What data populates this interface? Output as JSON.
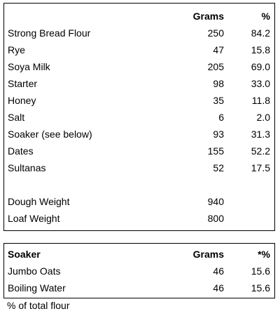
{
  "recipe": {
    "headers": {
      "name": "",
      "grams": "Grams",
      "pct": "%"
    },
    "ingredients": [
      {
        "name": "Strong Bread Flour",
        "grams": "250",
        "pct": "84.2"
      },
      {
        "name": "Rye",
        "grams": "47",
        "pct": "15.8"
      },
      {
        "name": "Soya Milk",
        "grams": "205",
        "pct": "69.0"
      },
      {
        "name": "Starter",
        "grams": "98",
        "pct": "33.0"
      },
      {
        "name": "Honey",
        "grams": "35",
        "pct": "11.8"
      },
      {
        "name": "Salt",
        "grams": "6",
        "pct": "2.0"
      },
      {
        "name": "Soaker (see below)",
        "grams": "93",
        "pct": "31.3"
      },
      {
        "name": "Dates",
        "grams": "155",
        "pct": "52.2"
      },
      {
        "name": "Sultanas",
        "grams": "52",
        "pct": "17.5"
      }
    ],
    "totals": [
      {
        "name": "Dough Weight",
        "grams": "940"
      },
      {
        "name": "Loaf Weight",
        "grams": "800"
      }
    ]
  },
  "soaker": {
    "headers": {
      "name": "Soaker",
      "grams": "Grams",
      "pct": "*%"
    },
    "ingredients": [
      {
        "name": "Jumbo Oats",
        "grams": "46",
        "pct": "15.6"
      },
      {
        "name": "Boiling Water",
        "grams": "46",
        "pct": "15.6"
      }
    ]
  },
  "footnote": "% of total flour"
}
